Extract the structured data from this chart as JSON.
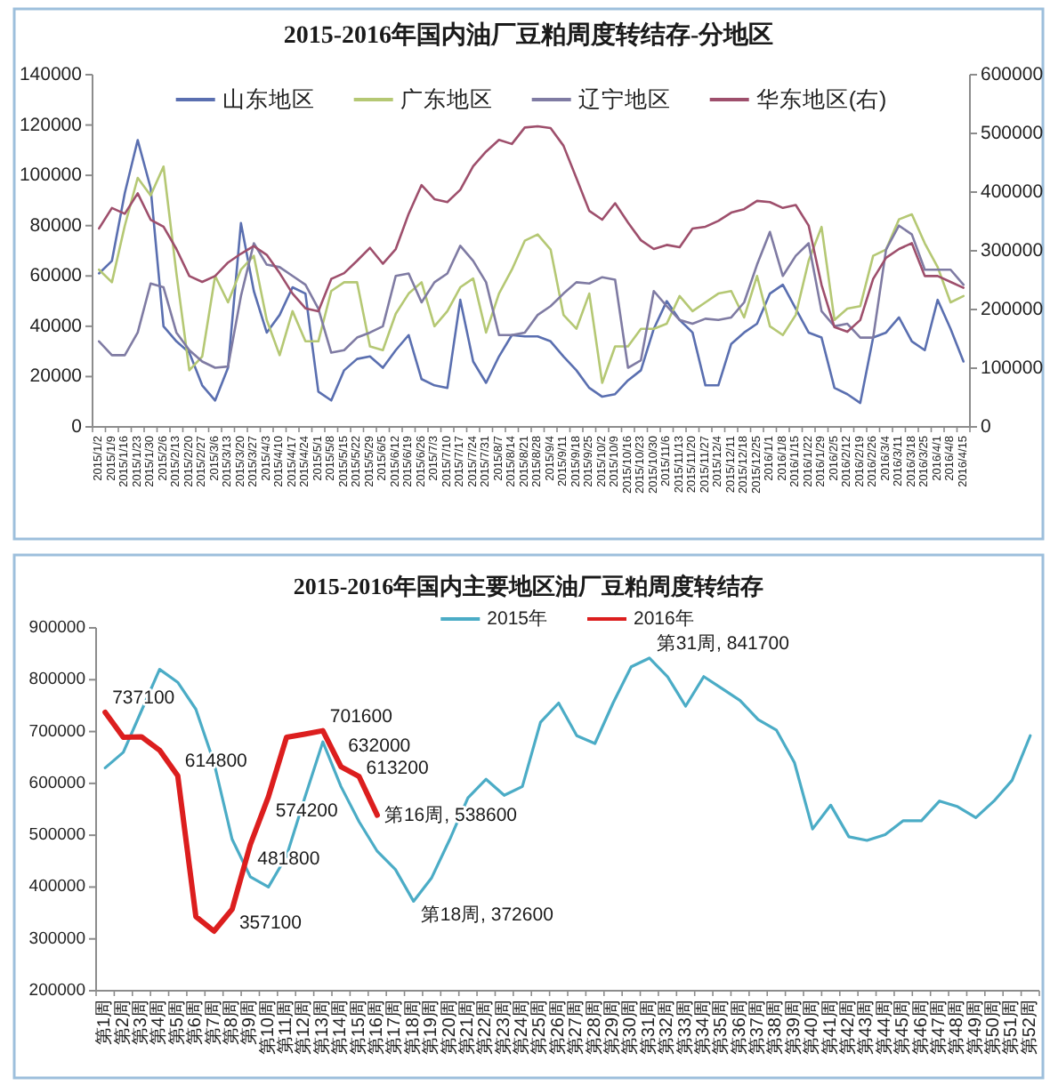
{
  "chart_data": [
    {
      "type": "line",
      "title": "2015-2016年国内油厂豆粕周度转结存-分地区",
      "categories": [
        "2015/1/2",
        "2015/1/9",
        "2015/1/16",
        "2015/1/23",
        "2015/1/30",
        "2015/2/6",
        "2015/2/13",
        "2015/2/20",
        "2015/2/27",
        "2015/3/6",
        "2015/3/13",
        "2015/3/20",
        "2015/3/27",
        "2015/4/3",
        "2015/4/10",
        "2015/4/17",
        "2015/4/24",
        "2015/5/1",
        "2015/5/8",
        "2015/5/15",
        "2015/5/22",
        "2015/5/29",
        "2015/6/5",
        "2015/6/12",
        "2015/6/19",
        "2015/6/26",
        "2015/7/3",
        "2015/7/10",
        "2015/7/17",
        "2015/7/24",
        "2015/7/31",
        "2015/8/7",
        "2015/8/14",
        "2015/8/21",
        "2015/8/28",
        "2015/9/4",
        "2015/9/11",
        "2015/9/18",
        "2015/9/25",
        "2015/10/2",
        "2015/10/9",
        "2015/10/16",
        "2015/10/23",
        "2015/10/30",
        "2015/11/6",
        "2015/11/13",
        "2015/11/20",
        "2015/11/27",
        "2015/12/4",
        "2015/12/11",
        "2015/12/18",
        "2015/12/25",
        "2016/1/1",
        "2016/1/8",
        "2016/1/15",
        "2016/1/22",
        "2016/1/29",
        "2016/2/5",
        "2016/2/12",
        "2016/2/19",
        "2016/2/26",
        "2016/3/4",
        "2016/3/11",
        "2016/3/18",
        "2016/3/25",
        "2016/4/1",
        "2016/4/8",
        "2016/4/15"
      ],
      "series": [
        {
          "name": "山东地区",
          "color": "#5a6fb0",
          "values": [
            61000,
            66000,
            93000,
            114000,
            95000,
            40000,
            34000,
            29500,
            16500,
            10500,
            23500,
            81000,
            54000,
            37500,
            44500,
            55500,
            53000,
            14000,
            10500,
            22500,
            27000,
            28000,
            23500,
            30500,
            36500,
            19000,
            16500,
            15500,
            50500,
            26000,
            17500,
            28000,
            36500,
            36000,
            36000,
            34000,
            28000,
            22500,
            15500,
            12000,
            13000,
            18500,
            22500,
            39000,
            50000,
            42500,
            37500,
            16500,
            16500,
            33000,
            37500,
            41000,
            53000,
            56500,
            47000,
            37500,
            35500,
            15500,
            13000,
            9500,
            35500,
            37500,
            43500,
            34000,
            30500,
            50500,
            39000,
            26000
          ]
        },
        {
          "name": "广东地区",
          "color": "#b5c874",
          "values": [
            62500,
            57500,
            80000,
            99000,
            92000,
            103500,
            61000,
            22500,
            28000,
            60000,
            49500,
            62500,
            68000,
            42500,
            28500,
            46000,
            34000,
            34000,
            54000,
            57500,
            57500,
            32000,
            30500,
            45000,
            53000,
            57500,
            40000,
            46000,
            55500,
            59000,
            37500,
            53000,
            62500,
            74000,
            76500,
            70500,
            44500,
            39000,
            53000,
            17500,
            32000,
            32000,
            39000,
            39000,
            41000,
            52000,
            46000,
            49500,
            53000,
            54000,
            43500,
            60000,
            40000,
            36500,
            44500,
            66000,
            79500,
            42500,
            47000,
            48000,
            68000,
            70500,
            82500,
            84500,
            73000,
            63500,
            49500,
            52000
          ]
        },
        {
          "name": "辽宁地区",
          "color": "#7f7ba3",
          "values": [
            34000,
            28500,
            28500,
            37500,
            57000,
            55500,
            37500,
            30500,
            26000,
            23500,
            24000,
            52000,
            73000,
            64500,
            63500,
            60000,
            56500,
            47000,
            29500,
            30500,
            35500,
            37500,
            40000,
            60000,
            61000,
            49500,
            57500,
            61000,
            72000,
            66000,
            57500,
            36500,
            36500,
            37500,
            44500,
            48000,
            53000,
            57500,
            57000,
            59500,
            58500,
            23500,
            26500,
            54000,
            48000,
            42500,
            41000,
            43000,
            42500,
            43500,
            49500,
            64500,
            77500,
            60000,
            68000,
            73000,
            46000,
            40000,
            41000,
            35500,
            35500,
            70500,
            80000,
            76500,
            62500,
            62500,
            62500,
            56500
          ]
        },
        {
          "name": "华东地区(右)",
          "color": "#9e4f6c",
          "axis": "y2",
          "values": [
            338000,
            373000,
            363000,
            398000,
            353000,
            341000,
            303000,
            257000,
            247000,
            257000,
            280000,
            295000,
            308000,
            293000,
            262000,
            227000,
            202000,
            197000,
            252000,
            262000,
            283000,
            305000,
            278000,
            303000,
            363000,
            412000,
            388000,
            383000,
            404000,
            444000,
            469000,
            489000,
            482000,
            510000,
            512000,
            509000,
            479000,
            424000,
            368000,
            353000,
            381000,
            348000,
            318000,
            303000,
            310000,
            306000,
            338000,
            341000,
            351000,
            365000,
            371000,
            385000,
            383000,
            373000,
            378000,
            343000,
            242000,
            170000,
            162000,
            182000,
            252000,
            288000,
            303000,
            313000,
            257000,
            257000,
            247000,
            237000
          ]
        }
      ],
      "ylim": [
        0,
        140000
      ],
      "yticks": [
        0,
        20000,
        40000,
        60000,
        80000,
        100000,
        120000,
        140000
      ],
      "y2lim": [
        0,
        600000
      ],
      "y2ticks": [
        0,
        100000,
        200000,
        300000,
        400000,
        500000,
        600000
      ],
      "legend": "top"
    },
    {
      "type": "line",
      "title": "2015-2016年国内主要地区油厂豆粕周度转结存",
      "categories": [
        "第1周",
        "第2周",
        "第3周",
        "第4周",
        "第5周",
        "第6周",
        "第7周",
        "第8周",
        "第9周",
        "第10周",
        "第11周",
        "第12周",
        "第13周",
        "第14周",
        "第15周",
        "第16周",
        "第17周",
        "第18周",
        "第19周",
        "第20周",
        "第21周",
        "第22周",
        "第23周",
        "第24周",
        "第25周",
        "第26周",
        "第27周",
        "第28周",
        "第29周",
        "第30周",
        "第31周",
        "第32周",
        "第33周",
        "第34周",
        "第35周",
        "第36周",
        "第37周",
        "第38周",
        "第39周",
        "第40周",
        "第41周",
        "第42周",
        "第43周",
        "第44周",
        "第45周",
        "第46周",
        "第47周",
        "第48周",
        "第49周",
        "第50周",
        "第51周",
        "第52周"
      ],
      "series": [
        {
          "name": "2015年",
          "color": "#4bacc6",
          "values": [
            630000,
            660000,
            740000,
            820000,
            795000,
            743000,
            640000,
            492000,
            420000,
            400000,
            460000,
            572000,
            680000,
            594000,
            526000,
            469000,
            434000,
            372600,
            418000,
            492000,
            572000,
            608000,
            577000,
            594000,
            718000,
            755000,
            692000,
            677000,
            755000,
            825000,
            841700,
            806000,
            749000,
            806000,
            783000,
            760000,
            723000,
            703000,
            640000,
            512000,
            558000,
            497000,
            490000,
            501000,
            528000,
            528000,
            566000,
            555000,
            534000,
            566000,
            606000,
            692000
          ],
          "value_labels": [
            null,
            null,
            null,
            null,
            null,
            null,
            null,
            null,
            null,
            null,
            null,
            null,
            null,
            null,
            null,
            null,
            null,
            "第18周, 372600",
            null,
            null,
            null,
            null,
            null,
            null,
            null,
            null,
            null,
            null,
            null,
            null,
            "第31周, 841700",
            null,
            null,
            null,
            null,
            null,
            null,
            null,
            null,
            null,
            null,
            null,
            null,
            null,
            null,
            null,
            null,
            null,
            null,
            null,
            null,
            null
          ]
        },
        {
          "name": "2016年",
          "color": "#dc1e1e",
          "values": [
            737100,
            689000,
            690000,
            664000,
            614800,
            343000,
            315000,
            357100,
            481800,
            574200,
            689000,
            695000,
            701600,
            632000,
            613200,
            538600,
            null,
            null,
            null,
            null,
            null,
            null,
            null,
            null,
            null,
            null,
            null,
            null,
            null,
            null,
            null,
            null,
            null,
            null,
            null,
            null,
            null,
            null,
            null,
            null,
            null,
            null,
            null,
            null,
            null,
            null,
            null,
            null,
            null,
            null,
            null,
            null
          ],
          "value_labels": [
            "737100",
            null,
            null,
            null,
            "614800",
            null,
            null,
            "357100",
            "481800",
            "574200",
            null,
            null,
            "701600",
            "632000",
            "613200",
            "第16周, 538600",
            null,
            null,
            null,
            null,
            null,
            null,
            null,
            null,
            null,
            null,
            null,
            null,
            null,
            null,
            null,
            null,
            null,
            null,
            null,
            null,
            null,
            null,
            null,
            null,
            null,
            null,
            null,
            null,
            null,
            null,
            null,
            null,
            null,
            null,
            null,
            null
          ]
        }
      ],
      "ylim": [
        200000,
        900000
      ],
      "yticks": [
        200000,
        300000,
        400000,
        500000,
        600000,
        700000,
        800000,
        900000
      ],
      "legend": "top"
    }
  ]
}
